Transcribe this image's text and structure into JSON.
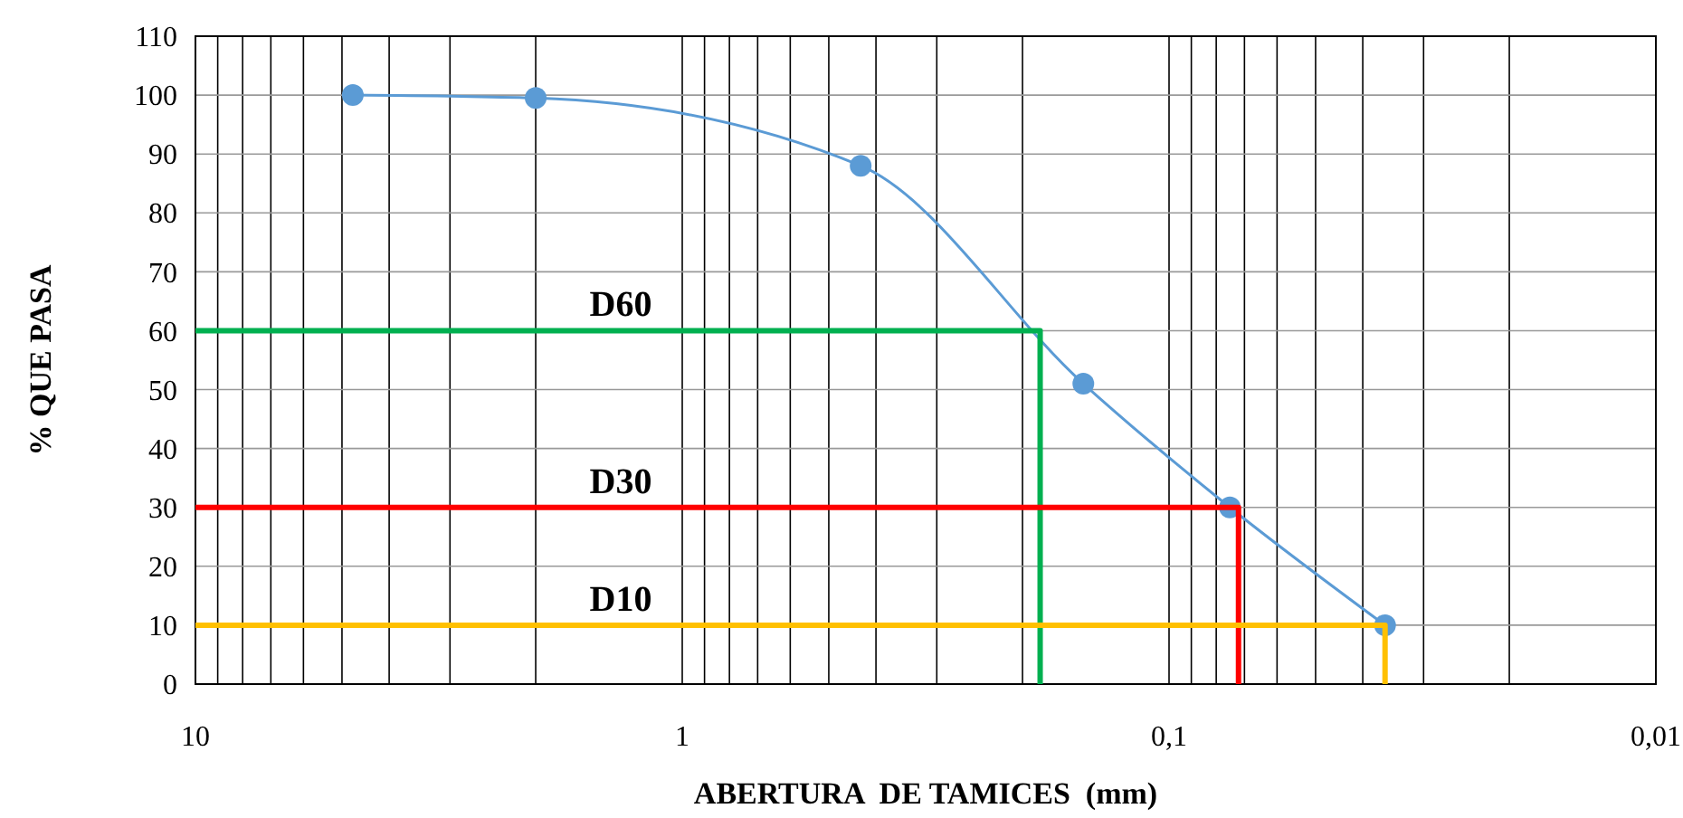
{
  "chart_data": {
    "type": "line",
    "xlabel": "ABERTURA  DE TAMICES  (mm)",
    "ylabel": "% QUE PASA",
    "log": "x",
    "grid": true,
    "xlim": [
      10,
      0.01
    ],
    "ylim": [
      0,
      110
    ],
    "xticks": [
      {
        "value": 10,
        "label": "10"
      },
      {
        "value": 9,
        "label": null
      },
      {
        "value": 8,
        "label": null
      },
      {
        "value": 7,
        "label": null
      },
      {
        "value": 6,
        "label": null
      },
      {
        "value": 5,
        "label": null
      },
      {
        "value": 4,
        "label": null
      },
      {
        "value": 3,
        "label": null
      },
      {
        "value": 2,
        "label": null
      },
      {
        "value": 1,
        "label": "1"
      },
      {
        "value": 0.9,
        "label": null
      },
      {
        "value": 0.8,
        "label": null
      },
      {
        "value": 0.7,
        "label": null
      },
      {
        "value": 0.6,
        "label": null
      },
      {
        "value": 0.5,
        "label": null
      },
      {
        "value": 0.4,
        "label": null
      },
      {
        "value": 0.3,
        "label": null
      },
      {
        "value": 0.2,
        "label": null
      },
      {
        "value": 0.1,
        "label": "0,1"
      },
      {
        "value": 0.09,
        "label": null
      },
      {
        "value": 0.08,
        "label": null
      },
      {
        "value": 0.07,
        "label": null
      },
      {
        "value": 0.06,
        "label": null
      },
      {
        "value": 0.05,
        "label": null
      },
      {
        "value": 0.04,
        "label": null
      },
      {
        "value": 0.03,
        "label": null
      },
      {
        "value": 0.02,
        "label": null
      },
      {
        "value": 0.01,
        "label": "0,01"
      }
    ],
    "yticks": [
      0,
      10,
      20,
      30,
      40,
      50,
      60,
      70,
      80,
      90,
      100,
      110
    ],
    "series": [
      {
        "color": "#5b9bd5",
        "marker": "circle",
        "x": [
          4.75,
          2,
          0.43,
          0.15,
          0.075,
          0.036
        ],
        "values": [
          100,
          99.5,
          88,
          51,
          30,
          10
        ]
      },
      {
        "name": "D60",
        "color": "#00b050",
        "marker": "none",
        "x": [
          10,
          0.184,
          0.184
        ],
        "values": [
          60,
          60,
          0
        ]
      },
      {
        "name": "D30",
        "color": "#ff0000",
        "marker": "none",
        "x": [
          10,
          0.072,
          0.072
        ],
        "values": [
          30,
          30,
          0
        ]
      },
      {
        "name": "D10",
        "color": "#ffc000",
        "marker": "none",
        "x": [
          10,
          0.036,
          0.036
        ],
        "values": [
          10,
          10,
          0
        ]
      }
    ]
  }
}
